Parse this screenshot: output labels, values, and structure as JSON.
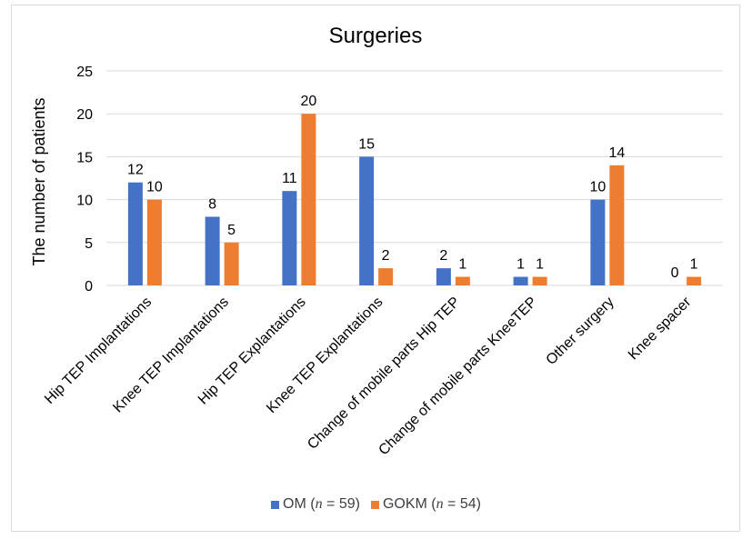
{
  "chart_data": {
    "type": "bar",
    "title": "Surgeries",
    "ylabel": "The number of patients",
    "xlabel": "",
    "ylim": [
      0,
      25
    ],
    "yticks": [
      0,
      5,
      10,
      15,
      20,
      25
    ],
    "grid": true,
    "legend_position": "bottom",
    "categories": [
      "Hip TEP Implantations",
      "Knee TEP Implantations",
      "Hip TEP Explantations",
      "Knee TEP  Explantations",
      "Change of mobile parts Hip TEP",
      "Change of mobile parts KneeTEP",
      "Other surgery",
      "Knee spacer"
    ],
    "series": [
      {
        "name_prefix": "OM (",
        "name_italic": "n",
        "name_suffix": " = 59)",
        "color": "#4472c4",
        "values": [
          12,
          8,
          11,
          15,
          2,
          1,
          10,
          0
        ]
      },
      {
        "name_prefix": "GOKM (",
        "name_italic": "n",
        "name_suffix": " = 54)",
        "color": "#ed7d31",
        "values": [
          10,
          5,
          20,
          2,
          1,
          1,
          14,
          1
        ]
      }
    ]
  }
}
